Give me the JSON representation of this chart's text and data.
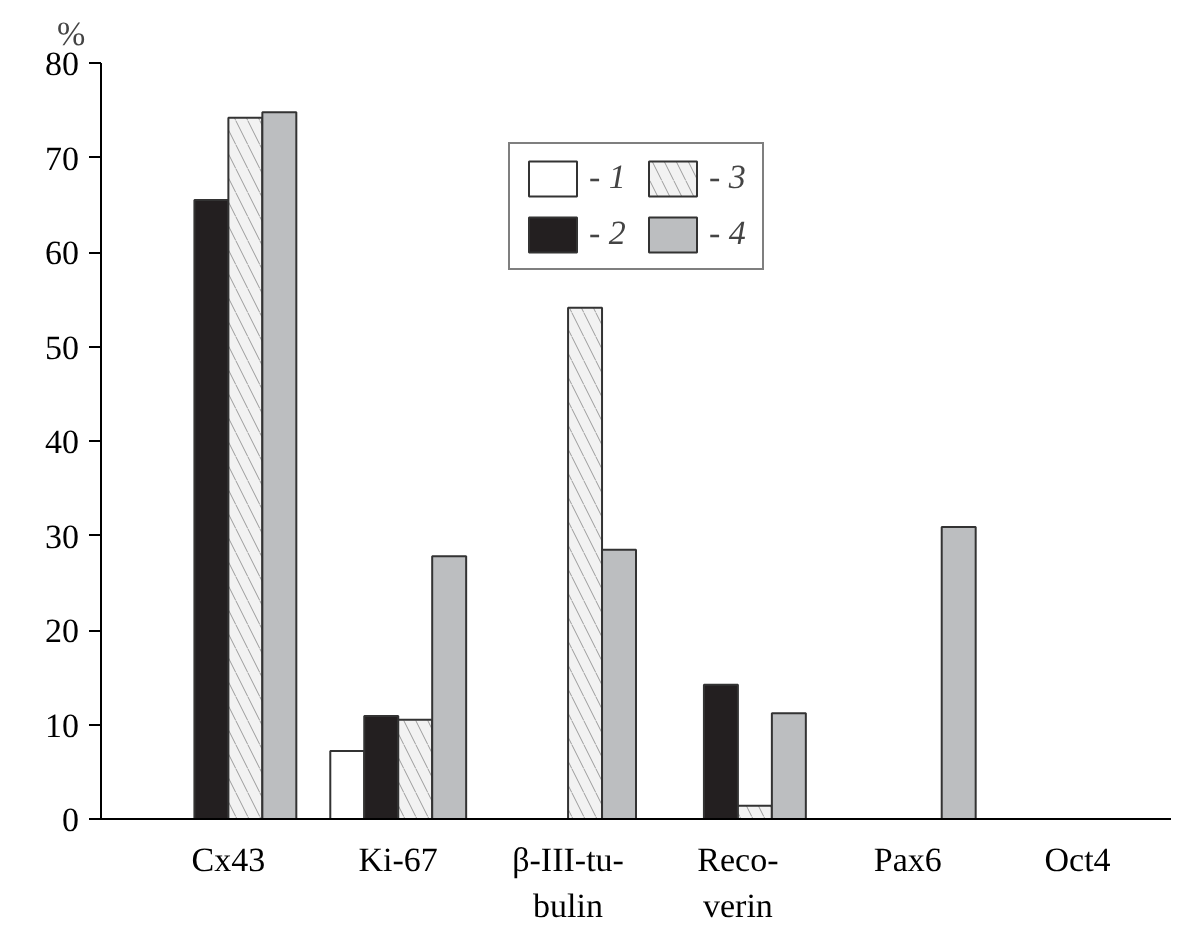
{
  "chart_data": {
    "type": "bar",
    "ylabel": "%",
    "categories": [
      "Cx43",
      "Ki-67",
      "β-III-tu-\nbulin",
      "Reco-\nverin",
      "Pax6",
      "Oct4"
    ],
    "series": [
      {
        "name": "- 1",
        "color": "#ffffff",
        "values": [
          null,
          7.2,
          null,
          null,
          null,
          null
        ]
      },
      {
        "name": "- 2",
        "color": "#231f20",
        "values": [
          65.5,
          10.9,
          null,
          14.2,
          null,
          null
        ]
      },
      {
        "name": "- 3",
        "color": "#f2f2f2",
        "values": [
          74.2,
          10.5,
          54.1,
          1.4,
          null,
          null
        ]
      },
      {
        "name": "- 4",
        "color": "#bcbec0",
        "values": [
          74.8,
          27.8,
          28.5,
          11.2,
          30.9,
          null
        ]
      }
    ],
    "ylim": [
      0,
      80
    ],
    "yticks": [
      0,
      10,
      20,
      30,
      40,
      50,
      60,
      70,
      80
    ],
    "grid": false,
    "legend": "top"
  }
}
